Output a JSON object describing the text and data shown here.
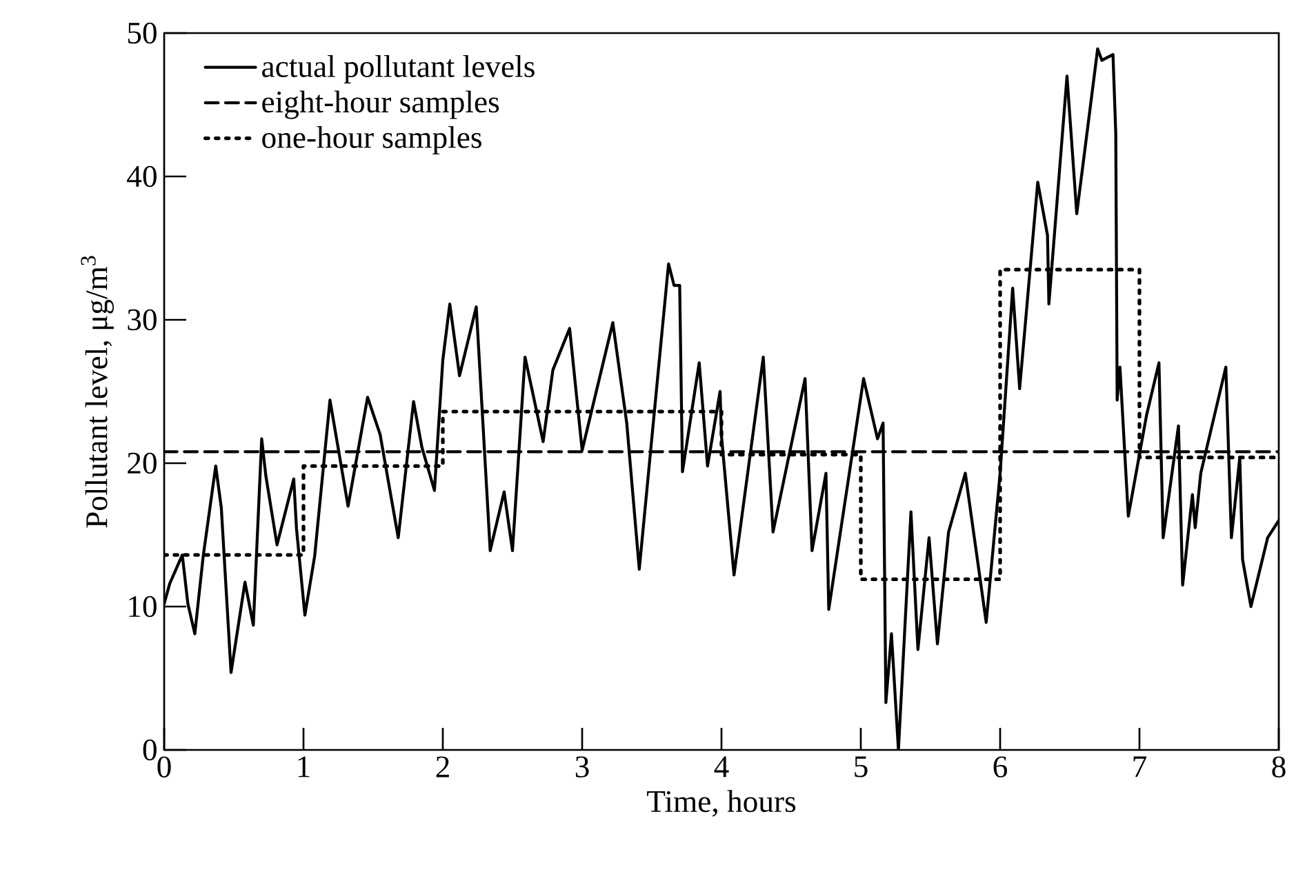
{
  "chart_data": {
    "type": "line",
    "xlabel": "Time, hours",
    "ylabel": "Pollutant level, μg/m$^{3}$",
    "xlim": [
      0,
      8
    ],
    "ylim": [
      0,
      50
    ],
    "xticks": [
      0,
      1,
      2,
      3,
      4,
      5,
      6,
      7,
      8
    ],
    "yticks": [
      0,
      10,
      20,
      30,
      40,
      50
    ],
    "grid": false,
    "legend": "top left",
    "marker": "none",
    "series": [
      {
        "name": "actual pollutant levels",
        "line_style": "solid",
        "color": "#000000",
        "x": [
          0,
          0.04,
          0.13,
          0.17,
          0.22,
          0.28,
          0.37,
          0.41,
          0.48,
          0.58,
          0.64,
          0.7,
          0.73,
          0.81,
          0.93,
          0.95,
          1.01,
          1.08,
          1.19,
          1.32,
          1.46,
          1.55,
          1.68,
          1.79,
          1.85,
          1.94,
          2.0,
          2.05,
          2.12,
          2.24,
          2.34,
          2.44,
          2.5,
          2.59,
          2.72,
          2.79,
          2.91,
          3.0,
          3.22,
          3.32,
          3.41,
          3.62,
          3.66,
          3.7,
          3.72,
          3.84,
          3.9,
          3.99,
          4.0,
          4.09,
          4.3,
          4.37,
          4.6,
          4.65,
          4.75,
          4.77,
          5.02,
          5.12,
          5.16,
          5.18,
          5.22,
          5.27,
          5.36,
          5.41,
          5.49,
          5.55,
          5.63,
          5.75,
          5.9,
          6.0,
          6.09,
          6.14,
          6.27,
          6.34,
          6.35,
          6.48,
          6.55,
          6.7,
          6.73,
          6.81,
          6.83,
          6.84,
          6.86,
          6.92,
          7.05,
          7.14,
          7.17,
          7.28,
          7.31,
          7.38,
          7.4,
          7.44,
          7.62,
          7.66,
          7.72,
          7.74,
          7.8,
          7.92,
          8.0
        ],
        "values": [
          10.2,
          11.6,
          13.6,
          10.2,
          8.1,
          13.5,
          19.8,
          16.9,
          5.4,
          11.7,
          8.7,
          21.7,
          19.1,
          14.3,
          18.9,
          15.4,
          9.4,
          13.5,
          24.4,
          17.0,
          24.6,
          22.0,
          14.8,
          24.3,
          21.1,
          18.1,
          27.2,
          31.1,
          26.1,
          30.9,
          13.9,
          18.0,
          13.9,
          27.4,
          21.5,
          26.5,
          29.4,
          20.9,
          29.8,
          22.8,
          12.6,
          33.9,
          32.4,
          32.4,
          19.4,
          27.0,
          19.8,
          25.0,
          21.9,
          12.2,
          27.4,
          15.2,
          25.9,
          13.9,
          19.3,
          9.8,
          25.9,
          21.7,
          22.8,
          3.3,
          8.1,
          0,
          16.6,
          7.0,
          14.8,
          7.4,
          15.2,
          19.3,
          8.9,
          19.3,
          32.2,
          25.2,
          39.6,
          35.9,
          31.1,
          47.0,
          37.4,
          48.9,
          48.1,
          48.5,
          43.0,
          24.4,
          26.7,
          16.3,
          23.3,
          27.0,
          14.8,
          22.6,
          11.5,
          17.8,
          15.5,
          19.3,
          26.7,
          14.8,
          20.4,
          13.3,
          10.0,
          14.8,
          16.0
        ]
      },
      {
        "name": "eight-hour samples",
        "line_style": "dashed",
        "color": "#000000",
        "x": [
          0,
          8
        ],
        "values": [
          20.8,
          20.8
        ]
      },
      {
        "name": "one-hour samples",
        "type": "step",
        "line_style": "dotted",
        "color": "#000000",
        "x": [
          0,
          1,
          2,
          3,
          4,
          5,
          6,
          7,
          8
        ],
        "values": [
          13.6,
          19.8,
          23.6,
          23.6,
          20.6,
          11.9,
          33.5,
          20.4,
          20.4
        ]
      }
    ]
  }
}
